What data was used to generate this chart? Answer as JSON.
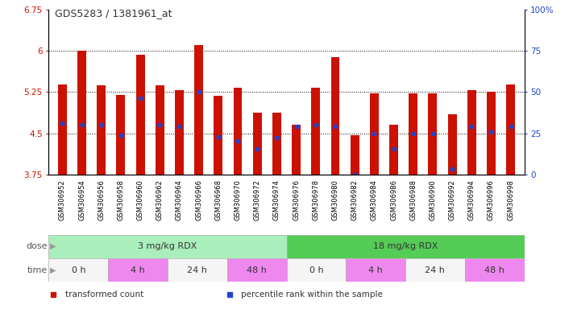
{
  "title": "GDS5283 / 1381961_at",
  "samples": [
    "GSM306952",
    "GSM306954",
    "GSM306956",
    "GSM306958",
    "GSM306960",
    "GSM306962",
    "GSM306964",
    "GSM306966",
    "GSM306968",
    "GSM306970",
    "GSM306972",
    "GSM306974",
    "GSM306976",
    "GSM306978",
    "GSM306980",
    "GSM306982",
    "GSM306984",
    "GSM306986",
    "GSM306988",
    "GSM306990",
    "GSM306992",
    "GSM306994",
    "GSM306996",
    "GSM306998"
  ],
  "bar_values": [
    5.38,
    6.0,
    5.37,
    5.2,
    5.93,
    5.37,
    5.28,
    6.1,
    5.18,
    5.32,
    4.87,
    4.87,
    4.65,
    5.33,
    5.88,
    4.46,
    5.22,
    4.65,
    5.22,
    5.22,
    4.85,
    5.28,
    5.25,
    5.38
  ],
  "percentile_values": [
    4.68,
    4.65,
    4.65,
    4.46,
    5.13,
    4.65,
    4.62,
    5.25,
    4.43,
    4.37,
    4.22,
    4.42,
    4.62,
    4.65,
    4.62,
    3.75,
    4.5,
    4.22,
    4.5,
    4.5,
    3.85,
    4.62,
    4.52,
    4.62
  ],
  "ymin": 3.75,
  "ymax": 6.75,
  "yticks": [
    3.75,
    4.5,
    5.25,
    6.0,
    6.75
  ],
  "ytick_labels": [
    "3.75",
    "4.5",
    "5.25",
    "6",
    "6.75"
  ],
  "right_ytick_labels": [
    "0",
    "25",
    "50",
    "75",
    "100%"
  ],
  "bar_color": "#cc1100",
  "dot_color": "#2244cc",
  "dose_groups": [
    {
      "label": "3 mg/kg RDX",
      "start": 0,
      "end": 12,
      "color": "#aaeebb"
    },
    {
      "label": "18 mg/kg RDX",
      "start": 12,
      "end": 24,
      "color": "#55cc55"
    }
  ],
  "time_groups": [
    {
      "label": "0 h",
      "start": 0,
      "end": 3,
      "color": "#f5f5f5"
    },
    {
      "label": "4 h",
      "start": 3,
      "end": 6,
      "color": "#ee88ee"
    },
    {
      "label": "24 h",
      "start": 6,
      "end": 9,
      "color": "#f5f5f5"
    },
    {
      "label": "48 h",
      "start": 9,
      "end": 12,
      "color": "#ee88ee"
    },
    {
      "label": "0 h",
      "start": 12,
      "end": 15,
      "color": "#f5f5f5"
    },
    {
      "label": "4 h",
      "start": 15,
      "end": 18,
      "color": "#ee88ee"
    },
    {
      "label": "24 h",
      "start": 18,
      "end": 21,
      "color": "#f5f5f5"
    },
    {
      "label": "48 h",
      "start": 21,
      "end": 24,
      "color": "#ee88ee"
    }
  ],
  "legend": [
    {
      "label": "transformed count",
      "color": "#cc1100",
      "marker": "s"
    },
    {
      "label": "percentile rank within the sample",
      "color": "#2244cc",
      "marker": "s"
    }
  ],
  "xlabel_bg": "#cccccc",
  "label_arrow_color": "#999999",
  "row_label_color": "#555555"
}
